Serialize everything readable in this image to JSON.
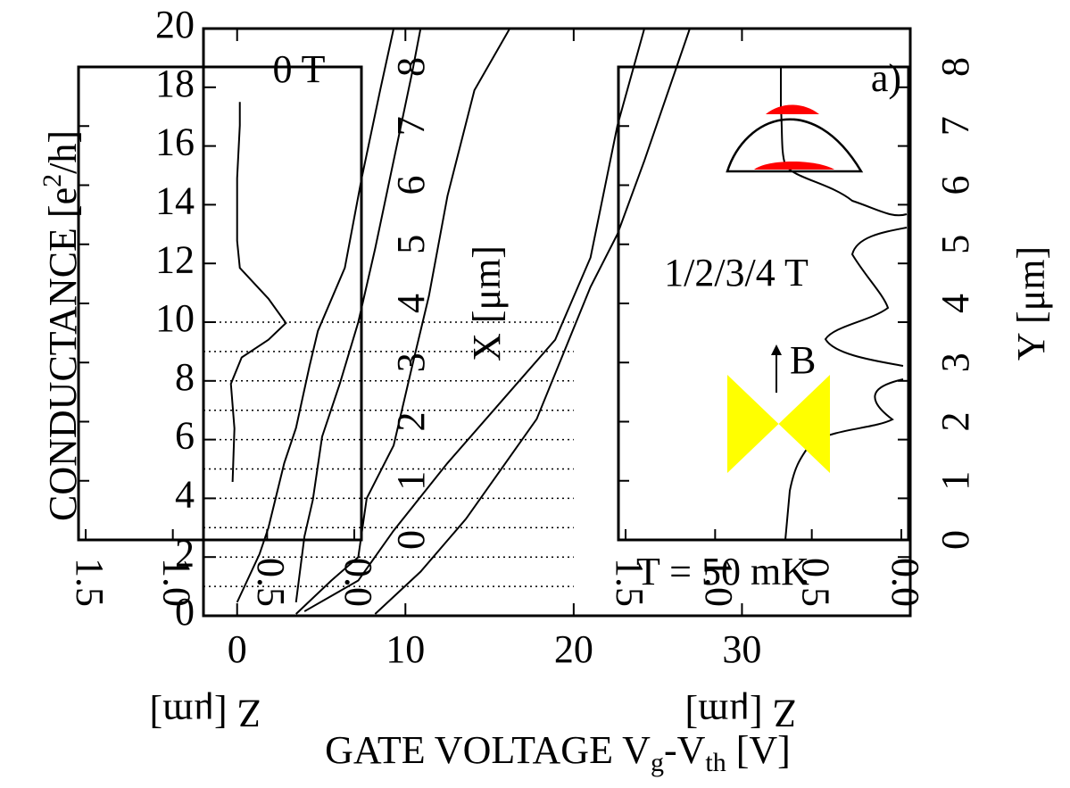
{
  "chart_data": {
    "type": "line",
    "x_label": [
      "GATE VOLTAGE V",
      "g",
      "-V",
      "th",
      " [V]"
    ],
    "y_label": [
      "CONDUCTANCE [e",
      "2",
      "/h]"
    ],
    "xlim": [
      -2,
      40
    ],
    "ylim": [
      0,
      20
    ],
    "xticks": [
      0,
      10,
      20,
      30
    ],
    "yticks": [
      0,
      2,
      4,
      6,
      8,
      10,
      12,
      14,
      16,
      18,
      20
    ],
    "reference_lines": [
      1,
      2,
      3,
      4,
      5,
      6,
      7,
      8,
      9,
      10
    ],
    "reference_xlim": [
      -2,
      20
    ],
    "series": [
      {
        "color": "#000000",
        "x": [
          -0.27,
          -0.16,
          -0.37,
          0.27,
          1.86,
          2.9,
          1.86,
          0.16,
          0,
          0,
          0.16,
          0.16
        ],
        "values": [
          4.56,
          6.38,
          7.9,
          8.8,
          9.4,
          9.97,
          10.8,
          11.85,
          12.77,
          14.9,
          16.7,
          17.5
        ]
      },
      {
        "color": "#000000",
        "x": [
          0,
          1.33,
          1.86,
          2.8,
          3.5,
          4.3,
          4.8,
          6.4,
          7.4,
          8.5,
          9.3
        ],
        "values": [
          0.46,
          2.1,
          3.0,
          5.2,
          6.4,
          8.5,
          9.7,
          11.85,
          14.9,
          17.9,
          20
        ]
      },
      {
        "color": "#000000",
        "x": [
          3.5,
          4,
          4.5,
          5.05,
          6.1,
          7.2,
          8.2,
          9.3,
          10.4,
          10.9
        ],
        "values": [
          0.46,
          2.7,
          3.95,
          6.1,
          7.9,
          10,
          12.5,
          15.5,
          18.5,
          20
        ]
      },
      {
        "color": "#000000",
        "x": [
          3.5,
          5.6,
          7.2,
          7.7,
          9.3,
          10.4,
          11.4,
          12.5,
          14.1,
          16.2
        ],
        "values": [
          0.06,
          1.2,
          2,
          4,
          5.8,
          8.5,
          10.9,
          14.3,
          17.9,
          20
        ]
      },
      {
        "color": "#000000",
        "x": [
          4,
          7.2,
          9.3,
          12.5,
          15.7,
          18.9,
          21,
          22.6,
          24.2
        ],
        "values": [
          0.15,
          1.2,
          2.9,
          5.2,
          7.3,
          9.4,
          12.2,
          16.7,
          20
        ]
      },
      {
        "color": "#000000",
        "x": [
          8.2,
          10.9,
          13.6,
          17.8,
          21,
          22.6,
          24.2,
          26.9
        ],
        "values": [
          0.06,
          1.5,
          3.3,
          6.7,
          11.2,
          13,
          15.5,
          20
        ]
      }
    ],
    "annotations": [
      "0 T",
      "a)",
      "1/2/3/4 T",
      "B",
      "T = 50 mK"
    ],
    "insets": [
      {
        "xlim": [
          1.5,
          0
        ],
        "ylim": [
          0,
          8
        ],
        "xticks": [
          1.5,
          {
            "value": 1,
            "label": "1.0"
          },
          0.5,
          {
            "value": 0,
            "label": "0.0"
          }
        ],
        "yticks": [
          0,
          1,
          2,
          3,
          4,
          5,
          6,
          7,
          8
        ],
        "x_label": "Z [μm]",
        "y_label": "X [μm]"
      },
      {
        "xlim": [
          1.5,
          0
        ],
        "ylim": [
          0,
          8
        ],
        "xticks": [
          1.5,
          {
            "value": 1,
            "label": "1.0"
          },
          0.5,
          {
            "value": 0,
            "label": "0.0"
          }
        ],
        "yticks": [
          0,
          1,
          2,
          3,
          4,
          5,
          6,
          7,
          8
        ],
        "x_label": "Z [μm]",
        "y_label": "Y [μm]"
      }
    ]
  }
}
